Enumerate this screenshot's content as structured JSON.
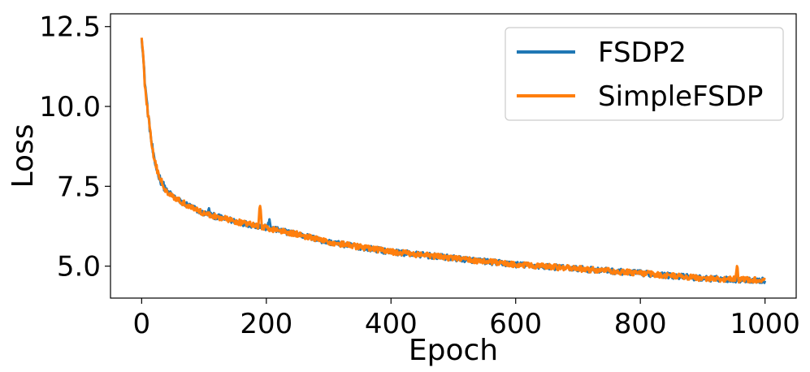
{
  "chart_data": {
    "type": "line",
    "title": "",
    "xlabel": "Epoch",
    "ylabel": "Loss",
    "xlim": [
      -50,
      1050
    ],
    "ylim": [
      4.0,
      12.9
    ],
    "x_ticks": [
      0,
      200,
      400,
      600,
      800,
      1000
    ],
    "x_tick_labels": [
      "0",
      "200",
      "400",
      "600",
      "800",
      "1000"
    ],
    "y_ticks": [
      5.0,
      7.5,
      10.0,
      12.5
    ],
    "y_tick_labels": [
      "5.0",
      "7.5",
      "10.0",
      "12.5"
    ],
    "grid": false,
    "legend_position": "top-right",
    "x_range": [
      0,
      1000
    ],
    "series": [
      {
        "name": "FSDP2",
        "color": "#1f77b4",
        "key_points": [
          [
            0,
            12.25
          ],
          [
            5,
            10.8
          ],
          [
            10,
            9.8
          ],
          [
            15,
            9.0
          ],
          [
            20,
            8.3
          ],
          [
            30,
            7.7
          ],
          [
            40,
            7.35
          ],
          [
            60,
            7.05
          ],
          [
            80,
            6.85
          ],
          [
            100,
            6.65
          ],
          [
            150,
            6.4
          ],
          [
            200,
            6.2
          ],
          [
            250,
            6.0
          ],
          [
            300,
            5.75
          ],
          [
            400,
            5.45
          ],
          [
            500,
            5.25
          ],
          [
            600,
            5.05
          ],
          [
            700,
            4.92
          ],
          [
            800,
            4.78
          ],
          [
            900,
            4.62
          ],
          [
            1000,
            4.55
          ]
        ],
        "spikes": [
          [
            108,
            6.75
          ],
          [
            205,
            6.45
          ]
        ]
      },
      {
        "name": "SimpleFSDP",
        "color": "#ff7f0e",
        "key_points": [
          [
            0,
            12.25
          ],
          [
            5,
            10.8
          ],
          [
            10,
            9.8
          ],
          [
            15,
            9.0
          ],
          [
            20,
            8.3
          ],
          [
            30,
            7.7
          ],
          [
            40,
            7.35
          ],
          [
            60,
            7.05
          ],
          [
            80,
            6.85
          ],
          [
            100,
            6.65
          ],
          [
            150,
            6.4
          ],
          [
            200,
            6.2
          ],
          [
            250,
            6.0
          ],
          [
            300,
            5.75
          ],
          [
            400,
            5.45
          ],
          [
            500,
            5.25
          ],
          [
            600,
            5.05
          ],
          [
            700,
            4.92
          ],
          [
            800,
            4.78
          ],
          [
            900,
            4.62
          ],
          [
            1000,
            4.55
          ]
        ],
        "spikes": [
          [
            6,
            10.45
          ],
          [
            190,
            6.95
          ],
          [
            955,
            5.05
          ]
        ]
      }
    ]
  }
}
